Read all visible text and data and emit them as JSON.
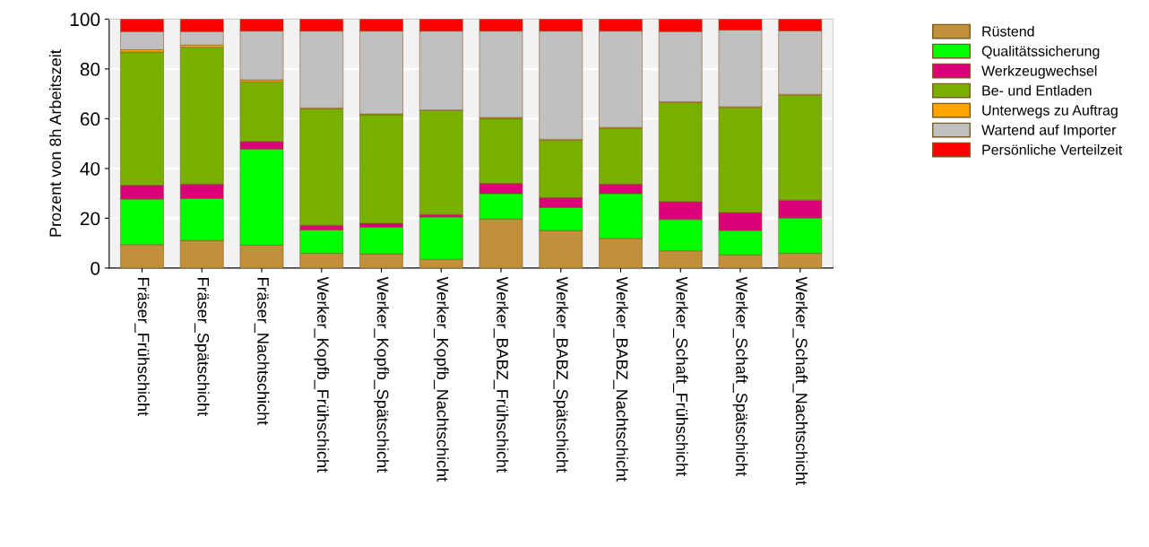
{
  "chart_data": {
    "type": "bar",
    "stacked": true,
    "ylabel": "Prozent von 8h Arbeitszeit",
    "categories": [
      "Fräser_Frühschicht",
      "Fräser_Spätschicht",
      "Fräser_Nachtschicht",
      "Werker_Kopfb_Frühschicht",
      "Werker_Kopfb_Spätschicht",
      "Werker_Kopfb_Nachtschicht",
      "Werker_BABZ_Frühschicht",
      "Werker_BABZ_Spätschicht",
      "Werker_BABZ_Nachtschicht",
      "Werker_Schaft_Frühschicht",
      "Werker_Schaft_Spätschicht",
      "Werker_Schaft_Nachtschicht"
    ],
    "series": [
      {
        "name": "Rüstend",
        "color": "#c0903a",
        "values": [
          9.4,
          11.1,
          9.2,
          5.9,
          5.7,
          3.5,
          19.7,
          15.1,
          11.9,
          6.9,
          5.3,
          5.9
        ]
      },
      {
        "name": "Qualitätssicherung",
        "color": "#00ff00",
        "values": [
          18.3,
          16.8,
          38.6,
          9.4,
          10.7,
          17.0,
          10.2,
          9.2,
          18.0,
          12.6,
          9.8,
          14.2
        ]
      },
      {
        "name": "Werkzeugwechsel",
        "color": "#dc0078",
        "values": [
          5.6,
          5.8,
          3.1,
          1.9,
          1.6,
          1.0,
          4.1,
          4.0,
          3.8,
          7.2,
          7.2,
          7.2
        ]
      },
      {
        "name": "Be- und Entladen",
        "color": "#78b000",
        "values": [
          53.5,
          55.0,
          23.9,
          46.7,
          43.6,
          41.8,
          26.1,
          23.0,
          22.3,
          39.7,
          42.1,
          42.1
        ]
      },
      {
        "name": "Unterwegs zu Auftrag",
        "color": "#ffa500",
        "values": [
          0.9,
          0.9,
          0.8,
          0.4,
          0.3,
          0.2,
          0.4,
          0.4,
          0.5,
          0.4,
          0.4,
          0.4
        ]
      },
      {
        "name": "Wartend auf Importer",
        "color": "#c0c0c0",
        "values": [
          7.3,
          5.4,
          19.6,
          30.9,
          33.3,
          31.7,
          34.7,
          43.5,
          38.7,
          28.2,
          30.8,
          25.5
        ]
      },
      {
        "name": "Persönliche Verteilzeit",
        "color": "#ff0000",
        "values": [
          5.0,
          5.0,
          4.8,
          4.8,
          4.8,
          4.8,
          4.8,
          4.8,
          4.8,
          5.0,
          4.4,
          4.7
        ]
      }
    ],
    "ylim": [
      0,
      100
    ],
    "yticks": [
      0,
      20,
      40,
      60,
      80,
      100
    ],
    "grid": "y",
    "legend": "top right"
  }
}
